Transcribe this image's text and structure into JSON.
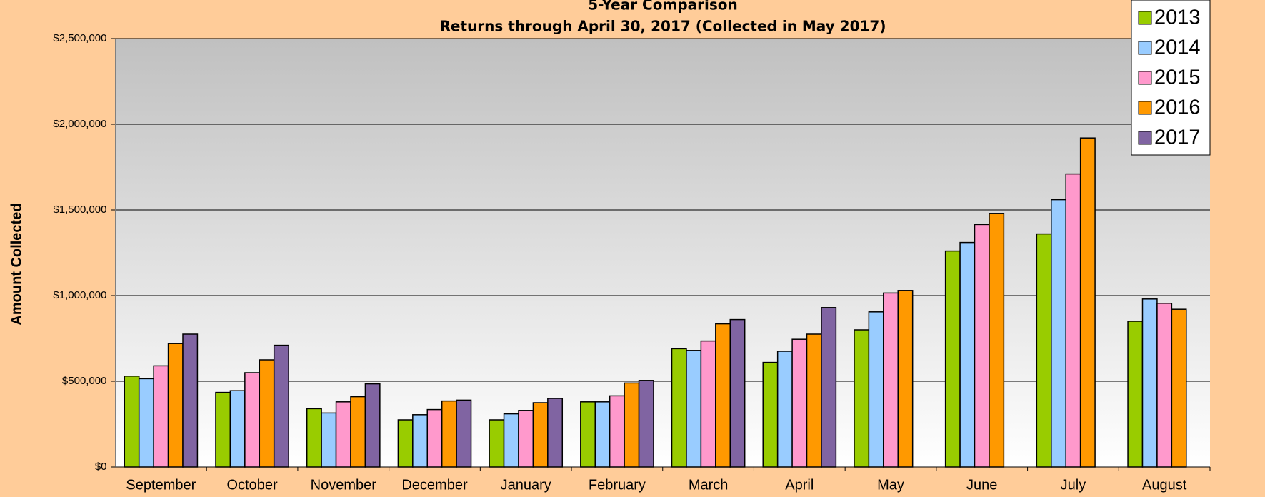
{
  "chart_data": {
    "type": "bar",
    "title": "5-Year Comparison",
    "subtitle": "Returns through April 30, 2017 (Collected in May 2017)",
    "y_label": "Amount Collected",
    "categories": [
      "September",
      "October",
      "November",
      "December",
      "January",
      "February",
      "March",
      "April",
      "May",
      "June",
      "July",
      "August"
    ],
    "series": [
      {
        "name": "2013",
        "color": "#99CC00",
        "values": [
          530000,
          435000,
          340000,
          275000,
          275000,
          380000,
          690000,
          610000,
          800000,
          1260000,
          1360000,
          850000
        ]
      },
      {
        "name": "2014",
        "color": "#99CCFF",
        "values": [
          515000,
          445000,
          315000,
          305000,
          310000,
          380000,
          680000,
          675000,
          905000,
          1310000,
          1560000,
          980000
        ]
      },
      {
        "name": "2015",
        "color": "#FF99CC",
        "values": [
          590000,
          550000,
          380000,
          335000,
          330000,
          415000,
          735000,
          745000,
          1015000,
          1415000,
          1710000,
          955000
        ]
      },
      {
        "name": "2016",
        "color": "#FF9900",
        "values": [
          720000,
          625000,
          410000,
          385000,
          375000,
          490000,
          835000,
          775000,
          1030000,
          1480000,
          1920000,
          920000
        ]
      },
      {
        "name": "2017",
        "color": "#8064A2",
        "values": [
          775000,
          710000,
          485000,
          390000,
          400000,
          505000,
          860000,
          930000,
          null,
          null,
          null,
          null
        ]
      }
    ],
    "ylim": [
      0,
      2500000
    ],
    "yticks": [
      {
        "value": 0,
        "label": "$0"
      },
      {
        "value": 500000,
        "label": "$500,000"
      },
      {
        "value": 1000000,
        "label": "$1,000,000"
      },
      {
        "value": 1500000,
        "label": "$1,500,000"
      },
      {
        "value": 2000000,
        "label": "$2,000,000"
      },
      {
        "value": 2500000,
        "label": "$2,500,000"
      }
    ],
    "grid": true,
    "legend": "top-right"
  }
}
